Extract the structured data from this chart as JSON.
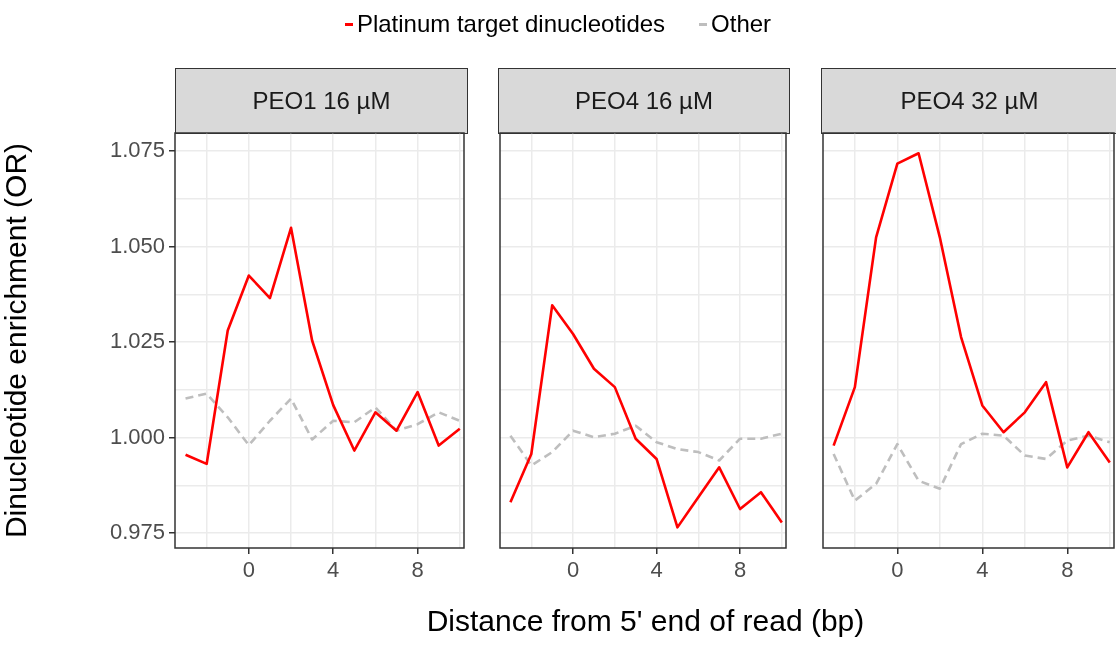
{
  "chart_data": [
    {
      "type": "line",
      "title": "PEO1 16 µM",
      "ylabel": "Dinucleotide enrichment (OR)",
      "legend": "top",
      "grid": true,
      "marker": "none",
      "x": [
        -3,
        -2,
        -1,
        0,
        1,
        2,
        3,
        4,
        5,
        6,
        7,
        8,
        9,
        10
      ],
      "xlim": [
        -3.5,
        10.2
      ],
      "xticks": [
        {
          "value": -2,
          "label": null
        },
        0,
        {
          "value": 2,
          "label": null
        },
        4,
        {
          "value": 6,
          "label": null
        },
        8,
        {
          "value": 10,
          "label": null
        }
      ],
      "ylim": [
        0.9711,
        1.0797
      ],
      "yticks": [
        0.975,
        {
          "value": 0.9875,
          "label": null
        },
        {
          "value": 1,
          "label": "1.000"
        },
        {
          "value": 1.0125,
          "label": null
        },
        1.025,
        {
          "value": 1.0375,
          "label": null
        },
        {
          "value": 1.05,
          "label": "1.050"
        },
        {
          "value": 1.0625,
          "label": null
        },
        1.075
      ],
      "series": [
        {
          "name": "Platinum target dinucleotides",
          "color": "#ff0000",
          "line_style": "solid",
          "values": [
            0.9955,
            0.9931,
            1.028,
            1.0424,
            1.0365,
            1.0549,
            1.0254,
            1.0085,
            0.9966,
            1.0066,
            1.0018,
            1.0119,
            0.9979,
            1.0023
          ]
        },
        {
          "name": "Other",
          "color": "#bebebe",
          "line_style": "dashed",
          "values": [
            1.0102,
            1.0115,
            1.0053,
            0.998,
            1.0044,
            1.0102,
            0.9995,
            1.0044,
            1.004,
            1.0079,
            1.0018,
            1.0035,
            1.0066,
            1.0044
          ]
        }
      ]
    },
    {
      "type": "line",
      "title": "PEO4 16 µM",
      "xlabel": "Distance from 5' end of read (bp)",
      "grid": true,
      "marker": "none",
      "tick_labels": "x",
      "x": [
        -3,
        -2,
        -1,
        0,
        1,
        2,
        3,
        4,
        5,
        6,
        7,
        8,
        9,
        10
      ],
      "xlim": [
        -3.5,
        10.2
      ],
      "xticks": [
        {
          "value": -2,
          "label": null
        },
        0,
        {
          "value": 2,
          "label": null
        },
        4,
        {
          "value": 6,
          "label": null
        },
        8,
        {
          "value": 10,
          "label": null
        }
      ],
      "ylim": [
        0.9711,
        1.0797
      ],
      "yticks": [
        0.975,
        0.9875,
        1,
        1.0125,
        1.025,
        1.0375,
        1.05,
        1.0625,
        1.075
      ],
      "series": [
        {
          "color": "#ff0000",
          "line_style": "solid",
          "values": [
            0.9831,
            0.9957,
            1.0346,
            1.0271,
            1.018,
            1.0132,
            0.9997,
            0.9944,
            0.9765,
            0.9844,
            0.9922,
            0.9813,
            0.9857,
            0.9778
          ]
        },
        {
          "color": "#bebebe",
          "line_style": "dashed",
          "values": [
            1.0005,
            0.9927,
            0.9962,
            1.0018,
            1.0001,
            1.001,
            1.0031,
            0.9988,
            0.997,
            0.9962,
            0.994,
            0.9997,
            0.9997,
            1.001
          ]
        }
      ]
    },
    {
      "type": "line",
      "title": "PEO4 32 µM",
      "grid": true,
      "marker": "none",
      "tick_labels": "x",
      "x": [
        -3,
        -2,
        -1,
        0,
        1,
        2,
        3,
        4,
        5,
        6,
        7,
        8,
        9,
        10
      ],
      "xlim": [
        -3.5,
        10.2
      ],
      "xticks": [
        {
          "value": -2,
          "label": null
        },
        0,
        {
          "value": 2,
          "label": null
        },
        4,
        {
          "value": 6,
          "label": null
        },
        8,
        {
          "value": 10,
          "label": null
        }
      ],
      "ylim": [
        0.9711,
        1.0797
      ],
      "yticks": [
        0.975,
        0.9875,
        1,
        1.0125,
        1.025,
        1.0375,
        1.05,
        1.0625,
        1.075
      ],
      "series": [
        {
          "color": "#ff0000",
          "line_style": "solid",
          "values": [
            0.9979,
            1.0132,
            1.0524,
            1.0717,
            1.0744,
            1.0524,
            1.0263,
            1.0084,
            1.0014,
            1.0066,
            1.0145,
            0.9922,
            1.0014,
            0.9935
          ]
        },
        {
          "color": "#bebebe",
          "line_style": "dashed",
          "values": [
            0.9957,
            0.9835,
            0.9879,
            0.9983,
            0.9887,
            0.9866,
            0.9983,
            1.001,
            1.0005,
            0.9953,
            0.9944,
            0.9992,
            1.0005,
            0.9988
          ]
        }
      ]
    }
  ]
}
